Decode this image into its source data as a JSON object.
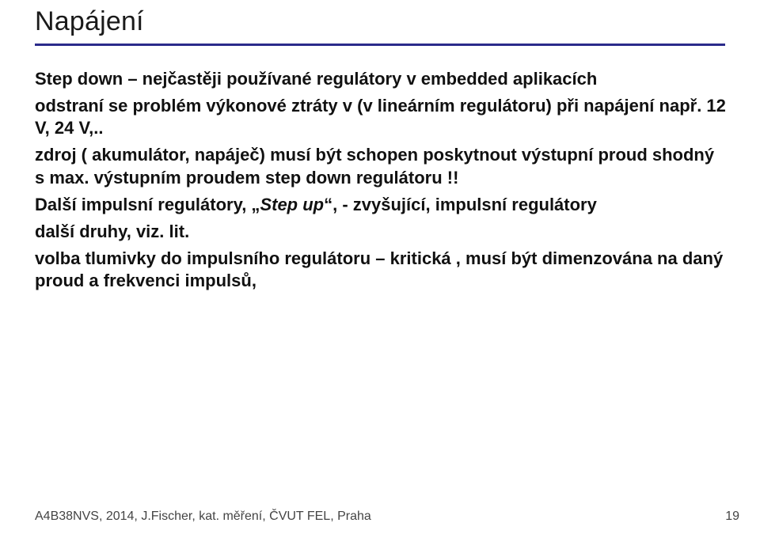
{
  "title": "Napájení",
  "colors": {
    "underline": "#2a2a8a",
    "text": "#111111",
    "footer": "#444444",
    "background": "#ffffff"
  },
  "typography": {
    "title_fontsize": 34,
    "body_fontsize": 22,
    "footer_fontsize": 16,
    "body_weight": "bold"
  },
  "lines": [
    {
      "text": "Step down – nejčastěji používané regulátory v embedded aplikacích",
      "indent": false
    },
    {
      "text": "odstraní se problém  výkonové ztráty v (v lineárním regulátoru) při napájení např. 12 V, 24 V,..",
      "indent": false
    },
    {
      "text": "zdroj ( akumulátor, napáječ)  musí být schopen poskytnout výstupní  proud shodný s max. výstupním proudem step down regulátoru !!",
      "indent": false
    },
    {
      "text_pre": "Další impulsní regulátory, „",
      "text_em": "Step up",
      "text_post": "“, - zvyšující, impulsní regulátory",
      "indent": false,
      "has_em": true
    },
    {
      "text": "další druhy, viz. lit.",
      "indent": false
    },
    {
      "text": "volba tlumivky do impulsního regulátoru – kritická , musí být dimenzována na daný proud a frekvenci impulsů,",
      "indent": false
    }
  ],
  "footer": "A4B38NVS, 2014, J.Fischer, kat. měření,  ČVUT FEL, Praha",
  "page_number": "19"
}
